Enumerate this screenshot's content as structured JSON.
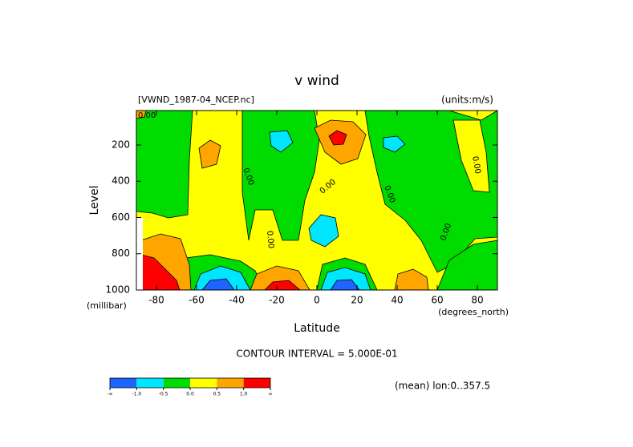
{
  "chart_data": {
    "type": "contour",
    "title": "v wind",
    "dataset": "[VWND_1987-04_NCEP.nc]",
    "units": "(units:m/s)",
    "x_label": "Latitude",
    "x_units": "(degrees_north)",
    "y_label": "Level",
    "y_units": "(millibar)",
    "contour_label": "0.00",
    "contour_interval": "CONTOUR INTERVAL = 5.000E-01",
    "note": "(mean) lon:0..357.5",
    "xlim": [
      -90,
      90
    ],
    "xticks": [
      -80,
      -60,
      -40,
      -20,
      0,
      20,
      40,
      60,
      80
    ],
    "ylim": [
      1000,
      10
    ],
    "yticks": [
      200,
      400,
      600,
      800,
      1000
    ],
    "colorbar": {
      "colors": [
        "#1e64ff",
        "#00e6ff",
        "#00dc00",
        "#ffff00",
        "#ffa500",
        "#ff0000"
      ],
      "ticks": [
        "-∞",
        {
          "value": -1,
          "label": "-1.0"
        },
        -0.5,
        {
          "value": 0,
          "label": "0.0"
        },
        0.5,
        {
          "value": 1,
          "label": "1.0"
        },
        "∞"
      ]
    }
  }
}
